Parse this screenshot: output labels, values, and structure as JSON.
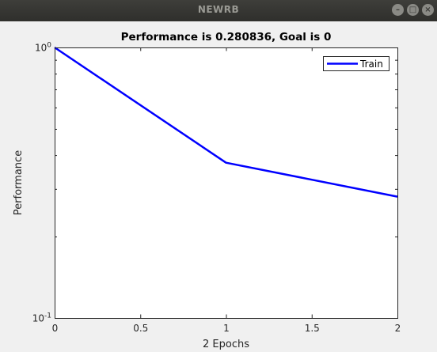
{
  "window": {
    "title": "NEWRB",
    "buttons": [
      {
        "name": "minimize",
        "glyph": "–"
      },
      {
        "name": "maximize",
        "glyph": "□"
      },
      {
        "name": "close",
        "glyph": "×"
      }
    ]
  },
  "chart_data": {
    "type": "line",
    "title": "Performance is 0.280836, Goal is 0",
    "xlabel": "2 Epochs",
    "ylabel": "Performance",
    "xlim": [
      0,
      2
    ],
    "ylim": [
      0.1,
      1
    ],
    "yscale": "log",
    "xticks": [
      0,
      0.5,
      1,
      1.5,
      2
    ],
    "xtick_labels": [
      "0",
      "0.5",
      "1",
      "1.5",
      "2"
    ],
    "yticks": [
      0.1,
      1
    ],
    "ytick_labels": [
      {
        "base": "10",
        "exp": "-1"
      },
      {
        "base": "10",
        "exp": "0"
      }
    ],
    "grid": false,
    "legend": {
      "position": "top-right"
    },
    "series": [
      {
        "name": "Train",
        "color": "#0000ff",
        "x": [
          0,
          1,
          2
        ],
        "y": [
          1.0,
          0.375,
          0.280836
        ]
      }
    ]
  }
}
